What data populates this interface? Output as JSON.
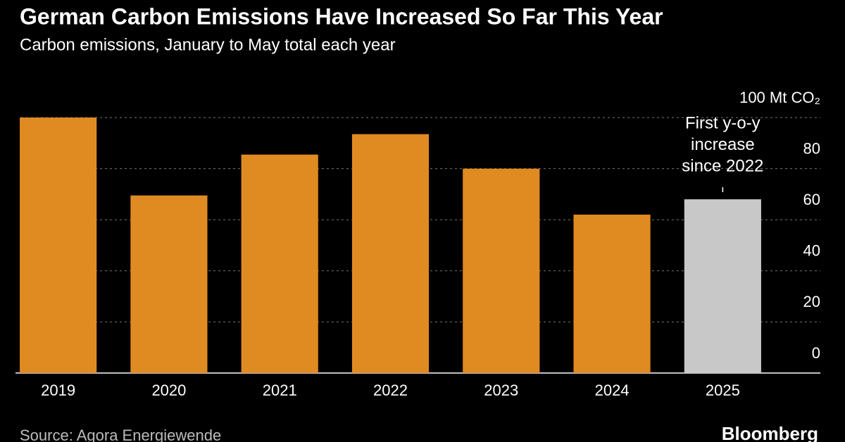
{
  "chart_data": {
    "type": "bar",
    "title": "German Carbon Emissions Have Increased So Far This Year",
    "subtitle": "Carbon emissions, January to May total each year",
    "categories": [
      "2019",
      "2020",
      "2021",
      "2022",
      "2023",
      "2024",
      "2025"
    ],
    "values": [
      100,
      69.5,
      85.5,
      93.5,
      80,
      62,
      68
    ],
    "colors": [
      "#e08a22",
      "#e08a22",
      "#e08a22",
      "#e08a22",
      "#e08a22",
      "#e08a22",
      "#c8c8c8"
    ],
    "ylim": [
      0,
      100
    ],
    "yticks": [
      0,
      20,
      40,
      60,
      80,
      {
        "value": 100,
        "label": "100 Mt CO₂"
      }
    ],
    "grid": true,
    "annotation": [
      "First y-o-y",
      "increase",
      "since 2022"
    ],
    "source": "Source: Agora Energiewende",
    "brand": "Bloomberg"
  }
}
